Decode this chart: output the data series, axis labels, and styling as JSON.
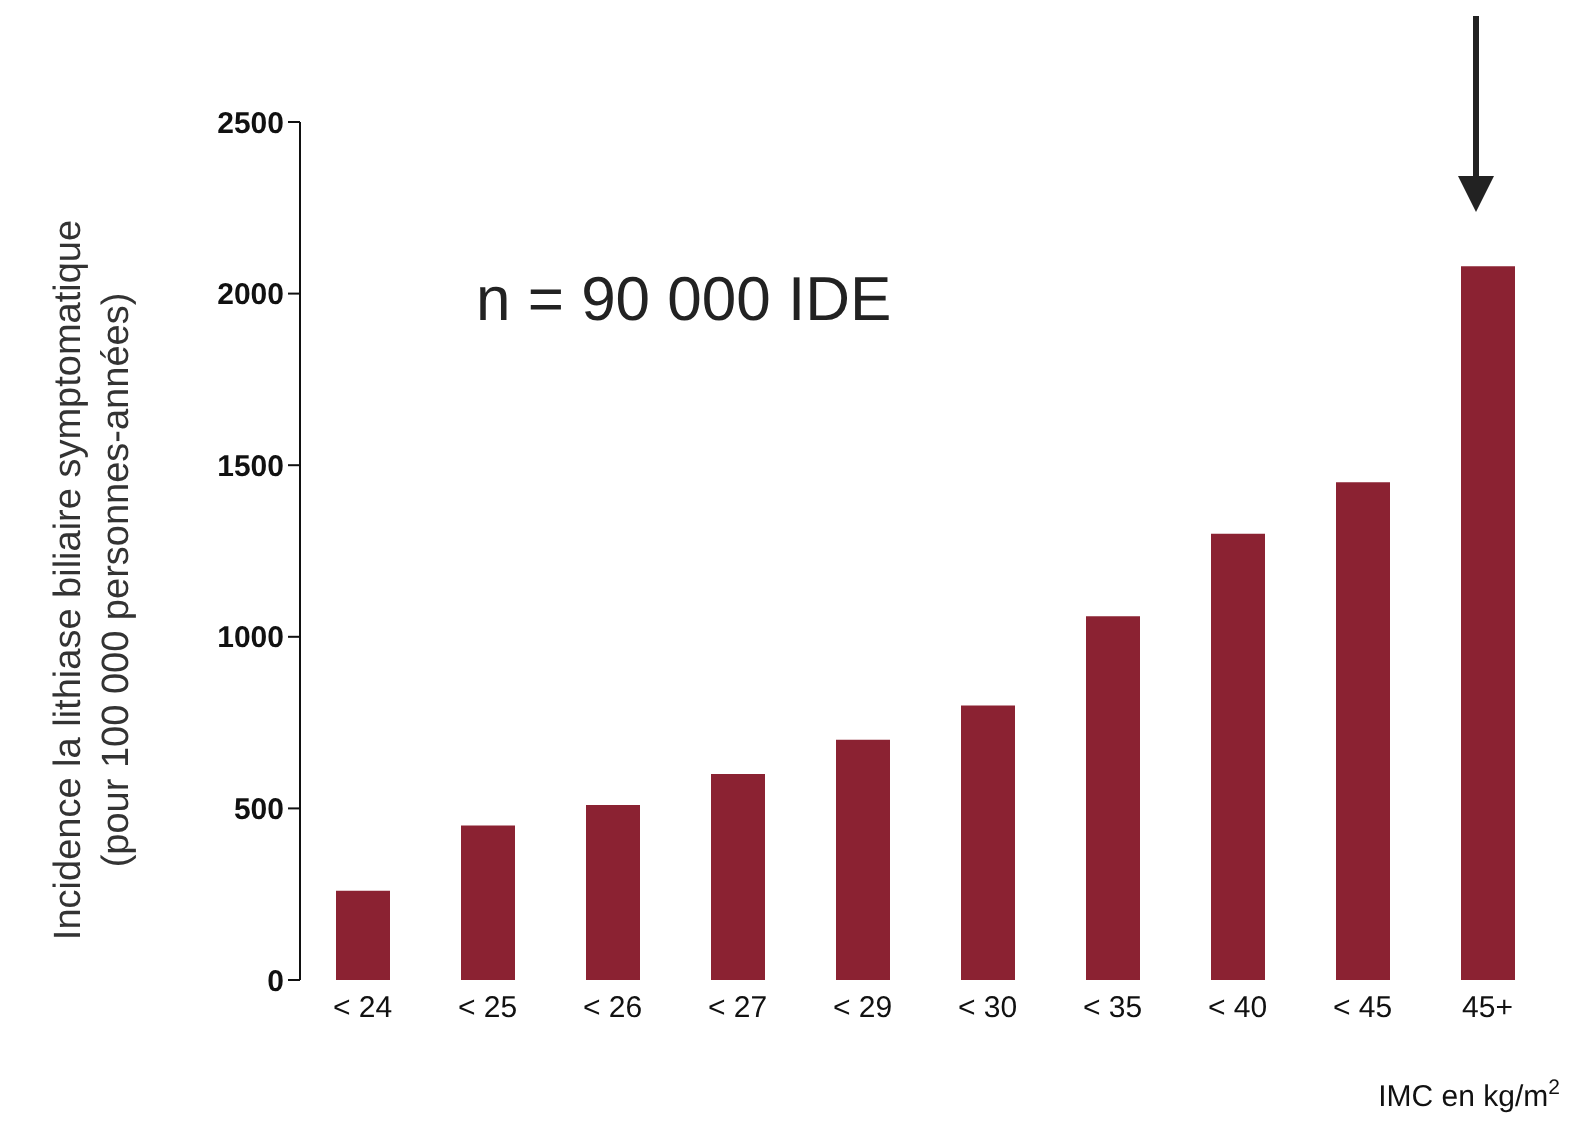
{
  "chart_data": {
    "type": "bar",
    "xlabel": "IMC en kg/m$^{2}$",
    "ylabel": "Incidence la lithiase biliaire symptomatique (pour 100 000 personnes-années)",
    "annotations": [
      "n = 90 000 IDE"
    ],
    "categories": [
      "< 24",
      "< 25",
      "< 26",
      "< 27",
      "< 29",
      "< 30",
      "< 35",
      "< 40",
      "< 45",
      "45+"
    ],
    "values": [
      260,
      450,
      510,
      600,
      700,
      800,
      1060,
      1300,
      1450,
      2080
    ],
    "color": "#8b2232",
    "ylim": [
      0,
      2500
    ],
    "yticks": [
      0,
      500,
      1000,
      1500,
      2000,
      2500
    ],
    "grid": false,
    "legend": false
  }
}
